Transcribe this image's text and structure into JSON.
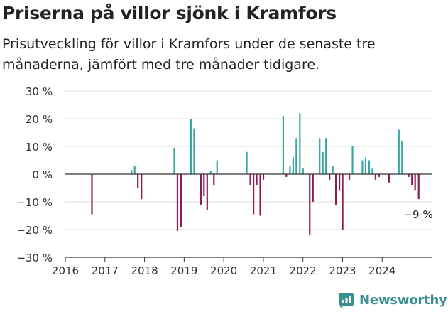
{
  "header": {
    "title": "Priserna på villor sjönk i Kramfors",
    "subtitle": "Prisutveckling för villor i Kramfors under de senaste tre månaderna, jämfört med tre månader tidigare."
  },
  "brand": {
    "name": "Newsworthy",
    "icon": "newsworthy-logo-icon"
  },
  "colors": {
    "positive": "#3aa6a0",
    "negative": "#8c1b4f",
    "grid": "#dddddd",
    "axis": "#333333",
    "brand": "#3a8f90"
  },
  "chart_data": {
    "type": "bar",
    "x_range": [
      2016.0,
      2025.25
    ],
    "ylim": [
      -30,
      30
    ],
    "y_ticks": [
      30,
      20,
      10,
      0,
      -10,
      -20,
      -30
    ],
    "y_tick_labels": [
      "30 %",
      "20 %",
      "10 %",
      "0 %",
      "−10 %",
      "−20 %",
      "−30 %"
    ],
    "x_ticks": [
      2016,
      2017,
      2018,
      2019,
      2020,
      2021,
      2022,
      2023,
      2024
    ],
    "x_tick_labels": [
      "2016",
      "2017",
      "2018",
      "2019",
      "2020",
      "2021",
      "2022",
      "2023",
      "2024"
    ],
    "annotation": {
      "text": "−9 %",
      "x": 2024.92,
      "y": -9
    },
    "grid": true,
    "series": [
      {
        "points": [
          {
            "x": 2016.67,
            "y": -14.5
          },
          {
            "x": 2017.67,
            "y": 1.5
          },
          {
            "x": 2017.75,
            "y": 3
          },
          {
            "x": 2017.83,
            "y": -5
          },
          {
            "x": 2017.92,
            "y": -9
          },
          {
            "x": 2018.75,
            "y": 9.5
          },
          {
            "x": 2018.83,
            "y": -20.5
          },
          {
            "x": 2018.92,
            "y": -19
          },
          {
            "x": 2019.17,
            "y": 20
          },
          {
            "x": 2019.25,
            "y": 16.5
          },
          {
            "x": 2019.42,
            "y": -11
          },
          {
            "x": 2019.5,
            "y": -8
          },
          {
            "x": 2019.58,
            "y": -13
          },
          {
            "x": 2019.67,
            "y": 1
          },
          {
            "x": 2019.75,
            "y": -4
          },
          {
            "x": 2019.83,
            "y": 5
          },
          {
            "x": 2020.58,
            "y": 8
          },
          {
            "x": 2020.67,
            "y": -4
          },
          {
            "x": 2020.75,
            "y": -14.5
          },
          {
            "x": 2020.83,
            "y": -4
          },
          {
            "x": 2020.92,
            "y": -15
          },
          {
            "x": 2021.0,
            "y": -2
          },
          {
            "x": 2021.5,
            "y": 21
          },
          {
            "x": 2021.58,
            "y": -1
          },
          {
            "x": 2021.67,
            "y": 3
          },
          {
            "x": 2021.75,
            "y": 6
          },
          {
            "x": 2021.83,
            "y": 13
          },
          {
            "x": 2021.92,
            "y": 22
          },
          {
            "x": 2022.0,
            "y": 2
          },
          {
            "x": 2022.17,
            "y": -22
          },
          {
            "x": 2022.25,
            "y": -10
          },
          {
            "x": 2022.42,
            "y": 13
          },
          {
            "x": 2022.5,
            "y": 8
          },
          {
            "x": 2022.58,
            "y": 13
          },
          {
            "x": 2022.67,
            "y": -2
          },
          {
            "x": 2022.75,
            "y": 3
          },
          {
            "x": 2022.83,
            "y": -11
          },
          {
            "x": 2022.92,
            "y": -6
          },
          {
            "x": 2023.0,
            "y": -20
          },
          {
            "x": 2023.17,
            "y": -2
          },
          {
            "x": 2023.25,
            "y": 10
          },
          {
            "x": 2023.5,
            "y": 5
          },
          {
            "x": 2023.58,
            "y": 6
          },
          {
            "x": 2023.67,
            "y": 5
          },
          {
            "x": 2023.75,
            "y": 2
          },
          {
            "x": 2023.83,
            "y": -2
          },
          {
            "x": 2023.92,
            "y": -1
          },
          {
            "x": 2024.17,
            "y": -3
          },
          {
            "x": 2024.42,
            "y": 16
          },
          {
            "x": 2024.5,
            "y": 12
          },
          {
            "x": 2024.67,
            "y": -1
          },
          {
            "x": 2024.75,
            "y": -4
          },
          {
            "x": 2024.83,
            "y": -6
          },
          {
            "x": 2024.92,
            "y": -9
          }
        ]
      }
    ]
  }
}
